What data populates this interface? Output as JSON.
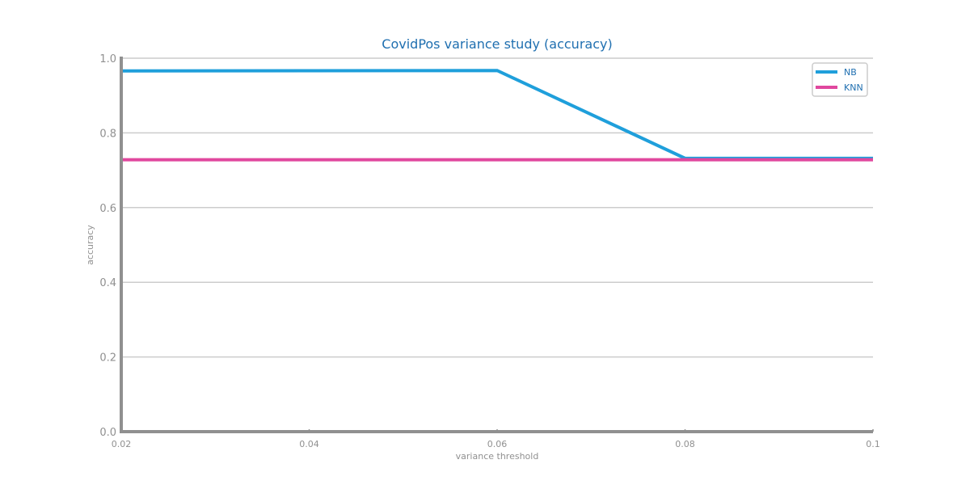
{
  "chart_data": {
    "type": "line",
    "title": "CovidPos variance study (accuracy)",
    "xlabel": "variance threshold",
    "ylabel": "accuracy",
    "x": [
      0.02,
      0.06,
      0.08,
      0.1
    ],
    "x_ticks": [
      "0.02",
      "0.04",
      "0.06",
      "0.08",
      "0.1"
    ],
    "x_tick_values": [
      0.02,
      0.04,
      0.06,
      0.08,
      0.1
    ],
    "y_ticks": [
      "0.0",
      "0.2",
      "0.4",
      "0.6",
      "0.8",
      "1.0"
    ],
    "y_tick_values": [
      0,
      0.2,
      0.4,
      0.6,
      0.8,
      1.0
    ],
    "xlim": [
      0.02,
      0.1
    ],
    "ylim": [
      0,
      1.0
    ],
    "grid": "horizontal",
    "legend_position": "top-right",
    "series": [
      {
        "name": "NB",
        "color": "#1f9fdb",
        "values": [
          0.966,
          0.967,
          0.732,
          0.732
        ]
      },
      {
        "name": "KNN",
        "color": "#e0479e",
        "values": [
          0.728,
          0.728,
          0.728,
          0.728
        ]
      }
    ]
  }
}
